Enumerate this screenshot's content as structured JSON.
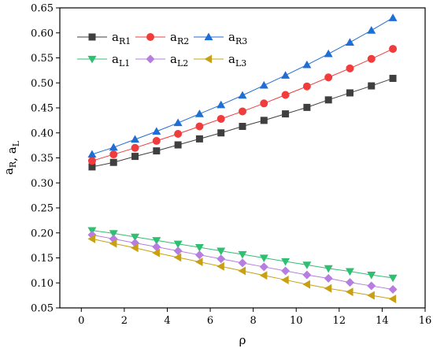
{
  "chart_data": {
    "type": "line",
    "xlabel": "ρ",
    "ylabel_parts": [
      {
        "base": "a",
        "sub": "R"
      },
      {
        "sep": ", "
      },
      {
        "base": "a",
        "sub": "L"
      }
    ],
    "xlim": [
      -1,
      16
    ],
    "ylim": [
      0.05,
      0.65
    ],
    "xticks": [
      0,
      2,
      4,
      6,
      8,
      10,
      12,
      14,
      16
    ],
    "yticks": [
      0.05,
      0.1,
      0.15,
      0.2,
      0.25,
      0.3,
      0.35,
      0.4,
      0.45,
      0.5,
      0.55,
      0.6,
      0.65
    ],
    "grid": false,
    "legend_placement": "top-left",
    "x": [
      0.5,
      1.5,
      2.5,
      3.5,
      4.5,
      5.5,
      6.5,
      7.5,
      8.5,
      9.5,
      10.5,
      11.5,
      12.5,
      13.5,
      14.5
    ],
    "series": [
      {
        "name": "aR1",
        "base": "a",
        "sub": "R1",
        "marker": "square",
        "color": "#3f3f3f",
        "values": [
          0.332,
          0.341,
          0.353,
          0.364,
          0.376,
          0.388,
          0.4,
          0.413,
          0.425,
          0.438,
          0.451,
          0.466,
          0.48,
          0.494,
          0.509
        ]
      },
      {
        "name": "aR2",
        "base": "a",
        "sub": "R2",
        "marker": "circle",
        "color": "#f03c3c",
        "values": [
          0.344,
          0.357,
          0.37,
          0.384,
          0.398,
          0.413,
          0.428,
          0.443,
          0.459,
          0.476,
          0.493,
          0.511,
          0.529,
          0.548,
          0.568
        ]
      },
      {
        "name": "aR3",
        "base": "a",
        "sub": "R3",
        "marker": "triangle-up",
        "color": "#1f6ed4",
        "values": [
          0.357,
          0.371,
          0.387,
          0.403,
          0.42,
          0.438,
          0.456,
          0.475,
          0.495,
          0.515,
          0.536,
          0.558,
          0.581,
          0.605,
          0.63
        ]
      },
      {
        "name": "aL1",
        "base": "a",
        "sub": "L1",
        "marker": "triangle-down",
        "color": "#2fbf71",
        "values": [
          0.205,
          0.199,
          0.192,
          0.185,
          0.178,
          0.171,
          0.164,
          0.157,
          0.15,
          0.143,
          0.136,
          0.129,
          0.123,
          0.116,
          0.11
        ]
      },
      {
        "name": "aL2",
        "base": "a",
        "sub": "L2",
        "marker": "diamond",
        "color": "#b57ee0",
        "values": [
          0.196,
          0.188,
          0.18,
          0.172,
          0.164,
          0.156,
          0.148,
          0.14,
          0.132,
          0.124,
          0.116,
          0.109,
          0.101,
          0.094,
          0.087
        ]
      },
      {
        "name": "aL3",
        "base": "a",
        "sub": "L3",
        "marker": "triangle-left",
        "color": "#c9a012",
        "values": [
          0.188,
          0.179,
          0.17,
          0.16,
          0.151,
          0.142,
          0.133,
          0.124,
          0.115,
          0.106,
          0.097,
          0.089,
          0.082,
          0.075,
          0.068
        ]
      }
    ]
  }
}
